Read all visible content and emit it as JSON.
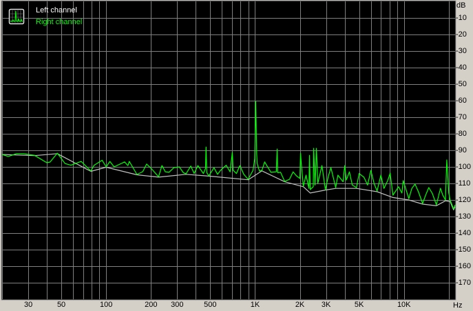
{
  "chart_data": {
    "type": "line",
    "title": "",
    "xlabel": "Hz",
    "ylabel": "dB",
    "x_scale": "log",
    "xlim": [
      20,
      22050
    ],
    "ylim": [
      -180,
      0
    ],
    "grid": true,
    "legend_position": "top-left",
    "x_ticks": [
      {
        "value": 30,
        "label": "30"
      },
      {
        "value": 50,
        "label": "50"
      },
      {
        "value": 100,
        "label": "100"
      },
      {
        "value": 200,
        "label": "200"
      },
      {
        "value": 300,
        "label": "300"
      },
      {
        "value": 500,
        "label": "500"
      },
      {
        "value": 1000,
        "label": "1K"
      },
      {
        "value": 2000,
        "label": "2K"
      },
      {
        "value": 3000,
        "label": "3K"
      },
      {
        "value": 5000,
        "label": "5K"
      },
      {
        "value": 10000,
        "label": "10K"
      }
    ],
    "y_ticks": [
      {
        "value": -10,
        "label": "-10"
      },
      {
        "value": -20,
        "label": "-20"
      },
      {
        "value": -30,
        "label": "-30"
      },
      {
        "value": -40,
        "label": "-40"
      },
      {
        "value": -50,
        "label": "-50"
      },
      {
        "value": -60,
        "label": "-60"
      },
      {
        "value": -70,
        "label": "-70"
      },
      {
        "value": -80,
        "label": "-80"
      },
      {
        "value": -90,
        "label": "-90"
      },
      {
        "value": -100,
        "label": "-100"
      },
      {
        "value": -110,
        "label": "-110"
      },
      {
        "value": -120,
        "label": "-120"
      },
      {
        "value": -130,
        "label": "-130"
      },
      {
        "value": -140,
        "label": "-140"
      },
      {
        "value": -150,
        "label": "-150"
      },
      {
        "value": -160,
        "label": "-160"
      },
      {
        "value": -170,
        "label": "-170"
      }
    ],
    "series": [
      {
        "name": "Left channel",
        "color": "#c0c0c0",
        "points": [
          [
            20,
            -92.5
          ],
          [
            33,
            -93.2
          ],
          [
            47,
            -92
          ],
          [
            79,
            -102.7
          ],
          [
            100,
            -100.2
          ],
          [
            161,
            -104.8
          ],
          [
            225,
            -106.2
          ],
          [
            344,
            -104.5
          ],
          [
            490,
            -105.6
          ],
          [
            899,
            -107.8
          ],
          [
            1113,
            -102.4
          ],
          [
            1582,
            -109
          ],
          [
            2110,
            -112
          ],
          [
            2347,
            -115.8
          ],
          [
            2967,
            -114
          ],
          [
            3480,
            -113
          ],
          [
            4793,
            -113
          ],
          [
            6598,
            -115
          ],
          [
            8433,
            -118.5
          ],
          [
            10777,
            -120
          ],
          [
            13341,
            -122.5
          ],
          [
            16514,
            -123.5
          ],
          [
            19000,
            -120.5
          ],
          [
            20430,
            -121
          ],
          [
            21540,
            -126
          ],
          [
            22050,
            -124
          ]
        ]
      },
      {
        "name": "Right channel",
        "color": "#00ff00",
        "points": [
          [
            20,
            -92.5
          ],
          [
            22,
            -93.7
          ],
          [
            25,
            -92
          ],
          [
            28,
            -92.1
          ],
          [
            33,
            -93
          ],
          [
            40,
            -97.5
          ],
          [
            42,
            -97.1
          ],
          [
            47,
            -91.7
          ],
          [
            53,
            -98
          ],
          [
            58,
            -99
          ],
          [
            68,
            -96.7
          ],
          [
            79,
            -102.5
          ],
          [
            83,
            -99
          ],
          [
            94,
            -96
          ],
          [
            100,
            -100
          ],
          [
            106,
            -96.7
          ],
          [
            113,
            -100
          ],
          [
            133,
            -97
          ],
          [
            140,
            -99.2
          ],
          [
            143,
            -96.7
          ],
          [
            161,
            -104.6
          ],
          [
            176,
            -102.9
          ],
          [
            187,
            -98.3
          ],
          [
            202,
            -101.2
          ],
          [
            225,
            -106
          ],
          [
            237,
            -99.2
          ],
          [
            250,
            -103
          ],
          [
            264,
            -103.3
          ],
          [
            285,
            -100.5
          ],
          [
            310,
            -100
          ],
          [
            330,
            -103.5
          ],
          [
            344,
            -104.2
          ],
          [
            370,
            -99.5
          ],
          [
            390,
            -104
          ],
          [
            413,
            -99.2
          ],
          [
            450,
            -104
          ],
          [
            465,
            -101
          ],
          [
            469,
            -88
          ],
          [
            474,
            -103.5
          ],
          [
            490,
            -105.4
          ],
          [
            530,
            -100.5
          ],
          [
            560,
            -104.5
          ],
          [
            587,
            -102.1
          ],
          [
            640,
            -99
          ],
          [
            680,
            -103
          ],
          [
            704,
            -91.2
          ],
          [
            712,
            -102
          ],
          [
            750,
            -104
          ],
          [
            791,
            -99.2
          ],
          [
            840,
            -104.5
          ],
          [
            899,
            -107.5
          ],
          [
            969,
            -102.1
          ],
          [
            995,
            -95
          ],
          [
            1011,
            -60.4
          ],
          [
            1025,
            -92
          ],
          [
            1033,
            -97.9
          ],
          [
            1070,
            -102.5
          ],
          [
            1113,
            -102.1
          ],
          [
            1160,
            -97
          ],
          [
            1199,
            -99.2
          ],
          [
            1279,
            -103.3
          ],
          [
            1390,
            -103
          ],
          [
            1407,
            -89.2
          ],
          [
            1420,
            -103.5
          ],
          [
            1484,
            -103.3
          ],
          [
            1582,
            -108.8
          ],
          [
            1704,
            -107.5
          ],
          [
            1800,
            -103
          ],
          [
            1897,
            -105.4
          ],
          [
            2000,
            -107
          ],
          [
            2021,
            -91.7
          ],
          [
            2043,
            -98
          ],
          [
            2110,
            -111.7
          ],
          [
            2200,
            -105
          ],
          [
            2300,
            -113
          ],
          [
            2322,
            -93
          ],
          [
            2347,
            -113.7
          ],
          [
            2460,
            -112
          ],
          [
            2476,
            -88.8
          ],
          [
            2530,
            -111
          ],
          [
            2584,
            -88.8
          ],
          [
            2640,
            -110
          ],
          [
            2813,
            -99.2
          ],
          [
            2967,
            -113.7
          ],
          [
            3100,
            -106
          ],
          [
            3231,
            -100.4
          ],
          [
            3480,
            -112.5
          ],
          [
            3600,
            -105
          ],
          [
            3900,
            -109
          ],
          [
            4000,
            -99.2
          ],
          [
            4100,
            -108
          ],
          [
            4300,
            -103
          ],
          [
            4500,
            -111
          ],
          [
            4793,
            -112.5
          ],
          [
            5000,
            -104
          ],
          [
            5391,
            -106.3
          ],
          [
            5700,
            -111
          ],
          [
            5997,
            -102.1
          ],
          [
            6300,
            -110
          ],
          [
            6598,
            -114.6
          ],
          [
            7000,
            -105
          ],
          [
            7341,
            -113
          ],
          [
            7800,
            -108
          ],
          [
            8081,
            -103.8
          ],
          [
            8433,
            -117.1
          ],
          [
            9200,
            -112
          ],
          [
            9687,
            -115.8
          ],
          [
            9895,
            -108.3
          ],
          [
            10777,
            -119.2
          ],
          [
            11300,
            -113
          ],
          [
            11862,
            -110.4
          ],
          [
            12500,
            -115
          ],
          [
            13341,
            -122.1
          ],
          [
            14000,
            -117
          ],
          [
            14683,
            -112.5
          ],
          [
            15500,
            -116
          ],
          [
            16514,
            -122.9
          ],
          [
            17600,
            -112.9
          ],
          [
            18200,
            -117
          ],
          [
            19000,
            -120
          ],
          [
            19376,
            -95.8
          ],
          [
            20000,
            -115.8
          ],
          [
            20430,
            -120
          ],
          [
            21540,
            -125.4
          ],
          [
            22050,
            -123
          ]
        ]
      }
    ]
  }
}
